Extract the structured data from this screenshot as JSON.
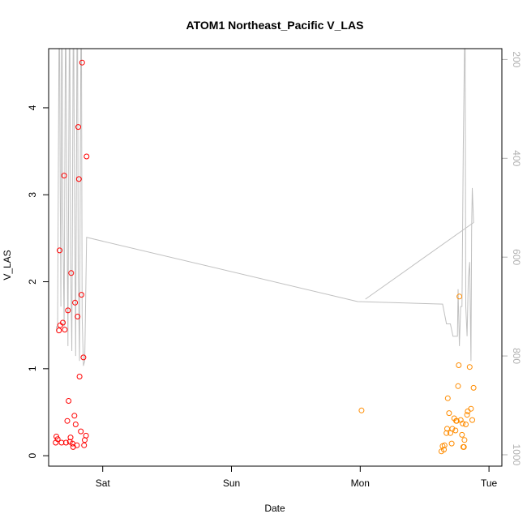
{
  "chart_data": {
    "type": "scatter",
    "title": "ATOM1 Northeast_Pacific V_LAS",
    "xlabel": "Date",
    "ylabel": "V_LAS",
    "x_ticks": [
      "Sat",
      "Sun",
      "Mon",
      "Tue"
    ],
    "x_tick_values": [
      0,
      1,
      2,
      3
    ],
    "xlim": [
      -0.42,
      3.1
    ],
    "ylim": [
      -0.12,
      4.68
    ],
    "y_ticks": [
      0,
      1,
      2,
      3,
      4
    ],
    "y2_ticks": [
      200,
      400,
      600,
      800,
      1000
    ],
    "y2lim": [
      1023,
      178
    ],
    "series": [
      {
        "color": "#ff0000",
        "points": [
          [
            -0.365,
            0.15
          ],
          [
            -0.36,
            0.22
          ],
          [
            -0.35,
            0.19
          ],
          [
            -0.34,
            1.44
          ],
          [
            -0.335,
            2.36
          ],
          [
            -0.33,
            1.5
          ],
          [
            -0.32,
            0.15
          ],
          [
            -0.31,
            1.53
          ],
          [
            -0.3,
            3.22
          ],
          [
            -0.295,
            1.45
          ],
          [
            -0.285,
            0.15
          ],
          [
            -0.275,
            0.4
          ],
          [
            -0.27,
            1.67
          ],
          [
            -0.265,
            0.63
          ],
          [
            -0.255,
            0.16
          ],
          [
            -0.25,
            0.21
          ],
          [
            -0.245,
            2.1
          ],
          [
            -0.235,
            0.14
          ],
          [
            -0.23,
            0.1
          ],
          [
            -0.22,
            0.46
          ],
          [
            -0.215,
            1.76
          ],
          [
            -0.21,
            0.36
          ],
          [
            -0.2,
            0.12
          ],
          [
            -0.195,
            1.6
          ],
          [
            -0.19,
            3.78
          ],
          [
            -0.185,
            3.18
          ],
          [
            -0.18,
            0.91
          ],
          [
            -0.17,
            0.28
          ],
          [
            -0.165,
            1.85
          ],
          [
            -0.16,
            4.52
          ],
          [
            -0.15,
            1.13
          ],
          [
            -0.145,
            0.12
          ],
          [
            -0.14,
            0.18
          ],
          [
            -0.13,
            0.23
          ],
          [
            -0.125,
            3.44
          ]
        ]
      },
      {
        "color": "#ff8c00",
        "points": [
          [
            2.01,
            0.52
          ],
          [
            2.63,
            0.05
          ],
          [
            2.64,
            0.11
          ],
          [
            2.65,
            0.07
          ],
          [
            2.655,
            0.12
          ],
          [
            2.67,
            0.26
          ],
          [
            2.675,
            0.31
          ],
          [
            2.68,
            0.66
          ],
          [
            2.69,
            0.49
          ],
          [
            2.7,
            0.26
          ],
          [
            2.71,
            0.14
          ],
          [
            2.715,
            0.31
          ],
          [
            2.73,
            0.43
          ],
          [
            2.74,
            0.29
          ],
          [
            2.745,
            0.4
          ],
          [
            2.75,
            0.4
          ],
          [
            2.76,
            0.8
          ],
          [
            2.765,
            1.04
          ],
          [
            2.77,
            1.83
          ],
          [
            2.78,
            0.41
          ],
          [
            2.79,
            0.24
          ],
          [
            2.795,
            0.37
          ],
          [
            2.8,
            0.1
          ],
          [
            2.805,
            0.1
          ],
          [
            2.81,
            0.18
          ],
          [
            2.82,
            0.36
          ],
          [
            2.83,
            0.47
          ],
          [
            2.835,
            0.51
          ],
          [
            2.85,
            1.02
          ],
          [
            2.86,
            0.54
          ],
          [
            2.87,
            0.41
          ],
          [
            2.88,
            0.78
          ]
        ]
      }
    ],
    "secondary_line": {
      "color": "#c0c0c0",
      "points": [
        [
          -0.36,
          740
        ],
        [
          -0.355,
          750
        ],
        [
          -0.35,
          730
        ],
        [
          -0.34,
          178
        ],
        [
          -0.335,
          178
        ],
        [
          -0.33,
          470
        ],
        [
          -0.325,
          700
        ],
        [
          -0.32,
          178
        ],
        [
          -0.315,
          178
        ],
        [
          -0.31,
          520
        ],
        [
          -0.3,
          740
        ],
        [
          -0.29,
          178
        ],
        [
          -0.285,
          178
        ],
        [
          -0.28,
          430
        ],
        [
          -0.27,
          780
        ],
        [
          -0.26,
          178
        ],
        [
          -0.255,
          178
        ],
        [
          -0.25,
          600
        ],
        [
          -0.24,
          790
        ],
        [
          -0.23,
          178
        ],
        [
          -0.225,
          178
        ],
        [
          -0.22,
          450
        ],
        [
          -0.21,
          800
        ],
        [
          -0.2,
          178
        ],
        [
          -0.195,
          178
        ],
        [
          -0.19,
          640
        ],
        [
          -0.18,
          810
        ],
        [
          -0.17,
          178
        ],
        [
          -0.165,
          178
        ],
        [
          -0.16,
          720
        ],
        [
          -0.15,
          820
        ],
        [
          -0.145,
          815
        ],
        [
          -0.14,
          810
        ],
        [
          -0.125,
          560
        ],
        [
          1.98,
          690
        ],
        [
          2.64,
          695
        ],
        [
          2.67,
          735
        ],
        [
          2.7,
          735
        ],
        [
          2.72,
          760
        ],
        [
          2.74,
          760
        ],
        [
          2.755,
          760
        ],
        [
          2.76,
          665
        ],
        [
          2.77,
          780
        ],
        [
          2.78,
          700
        ],
        [
          2.79,
          700
        ],
        [
          2.8,
          380
        ],
        [
          2.81,
          178
        ],
        [
          2.815,
          178
        ],
        [
          2.82,
          700
        ],
        [
          2.83,
          760
        ],
        [
          2.84,
          640
        ],
        [
          2.85,
          610
        ],
        [
          2.86,
          810
        ],
        [
          2.865,
          545
        ],
        [
          2.87,
          460
        ],
        [
          2.88,
          530
        ],
        [
          2.04,
          685
        ]
      ]
    }
  }
}
